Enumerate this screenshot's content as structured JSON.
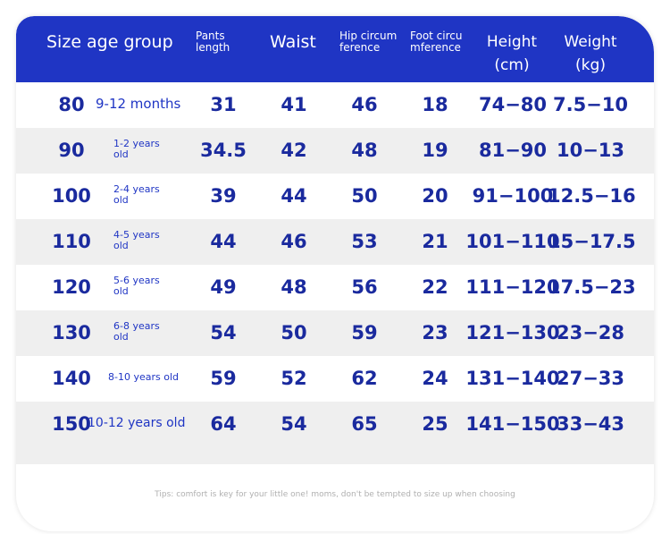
{
  "header": {
    "columns": [
      {
        "lines": [
          "Size age group"
        ]
      },
      {
        "lines": [
          "Pants",
          "length"
        ]
      },
      {
        "lines": [
          "Waist"
        ]
      },
      {
        "lines": [
          "Hip circum",
          "ference"
        ]
      },
      {
        "lines": [
          "Foot circu",
          "mference"
        ]
      },
      {
        "lines": [
          "Height",
          "(cm)"
        ]
      },
      {
        "lines": [
          "Weight",
          "(kg)"
        ]
      }
    ]
  },
  "table": {
    "rows": [
      [
        "80",
        "9-12 months",
        "31",
        "41",
        "46",
        "18",
        "74−80",
        "7.5−10"
      ],
      [
        "90",
        "1-2 years old",
        "34.5",
        "42",
        "48",
        "19",
        "81−90",
        "10−13"
      ],
      [
        "100",
        "2-4 years old",
        "39",
        "44",
        "50",
        "20",
        "91−100",
        "12.5−16"
      ],
      [
        "110",
        "4-5 years old",
        "44",
        "46",
        "53",
        "21",
        "101−110",
        "15−17.5"
      ],
      [
        "120",
        "5-6 years old",
        "49",
        "48",
        "56",
        "22",
        "111−120",
        "17.5−23"
      ],
      [
        "130",
        "6-8 years old",
        "54",
        "50",
        "59",
        "23",
        "121−130",
        "23−28"
      ],
      [
        "140",
        "8-10 years old",
        "59",
        "52",
        "62",
        "24",
        "131−140",
        "27−33"
      ],
      [
        "150",
        "10-12 years old",
        "64",
        "54",
        "65",
        "25",
        "141−150",
        "33−43"
      ]
    ]
  },
  "footer": {
    "tip": "Tips: comfort is key for your little one! moms, don't be tempted to size up when choosing"
  }
}
